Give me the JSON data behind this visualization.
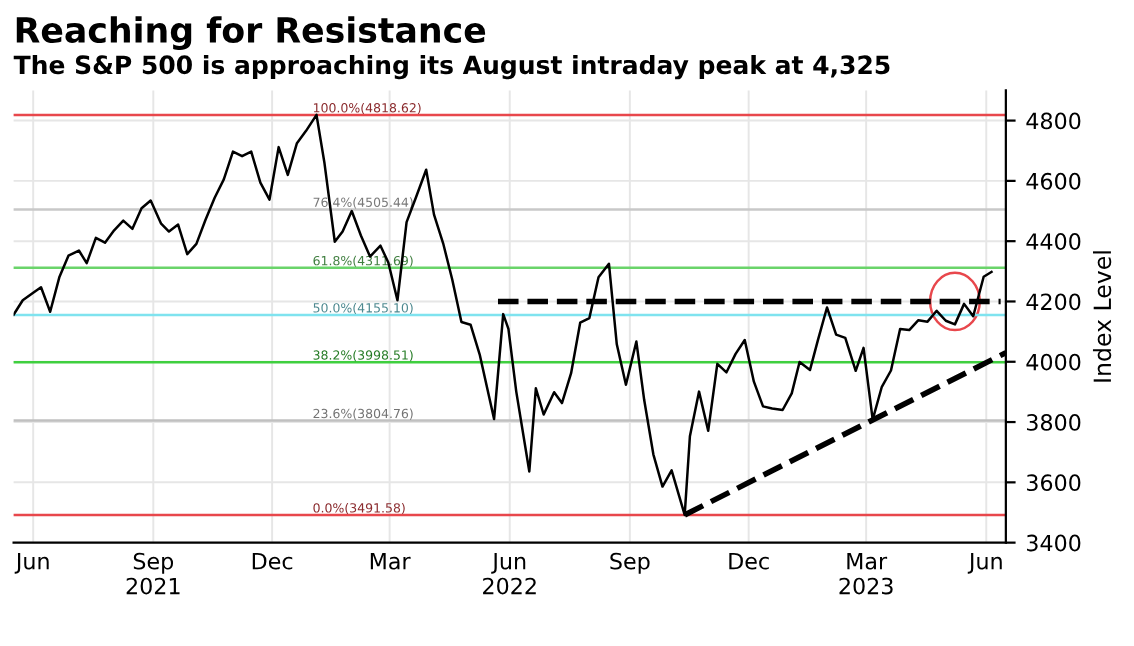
{
  "chart_data": {
    "type": "line",
    "title": "Reaching for Resistance",
    "subtitle": "The S&P 500 is approaching its August intraday peak at 4,325",
    "ylabel": "Index Level",
    "series": [
      {
        "color": "#000000",
        "line_style": "solid",
        "x": [
          "2021-05-17",
          "2021-05-24",
          "2021-06-01",
          "2021-06-07",
          "2021-06-14",
          "2021-06-21",
          "2021-06-28",
          "2021-07-06",
          "2021-07-12",
          "2021-07-19",
          "2021-07-26",
          "2021-08-02",
          "2021-08-09",
          "2021-08-16",
          "2021-08-23",
          "2021-08-30",
          "2021-09-07",
          "2021-09-13",
          "2021-09-20",
          "2021-09-27",
          "2021-10-04",
          "2021-10-11",
          "2021-10-18",
          "2021-10-25",
          "2021-11-01",
          "2021-11-08",
          "2021-11-15",
          "2021-11-22",
          "2021-11-29",
          "2021-12-06",
          "2021-12-13",
          "2021-12-20",
          "2021-12-27",
          "2022-01-04",
          "2022-01-10",
          "2022-01-18",
          "2022-01-24",
          "2022-01-31",
          "2022-02-07",
          "2022-02-14",
          "2022-02-22",
          "2022-02-28",
          "2022-03-07",
          "2022-03-14",
          "2022-03-21",
          "2022-03-29",
          "2022-04-04",
          "2022-04-11",
          "2022-04-18",
          "2022-04-25",
          "2022-05-02",
          "2022-05-09",
          "2022-05-20",
          "2022-05-27",
          "2022-05-31",
          "2022-06-06",
          "2022-06-16",
          "2022-06-21",
          "2022-06-27",
          "2022-07-05",
          "2022-07-11",
          "2022-07-18",
          "2022-07-25",
          "2022-08-01",
          "2022-08-08",
          "2022-08-16",
          "2022-08-22",
          "2022-08-29",
          "2022-09-06",
          "2022-09-12",
          "2022-09-19",
          "2022-09-26",
          "2022-10-03",
          "2022-10-13",
          "2022-10-17",
          "2022-10-24",
          "2022-10-31",
          "2022-11-07",
          "2022-11-14",
          "2022-11-21",
          "2022-11-28",
          "2022-12-05",
          "2022-12-12",
          "2022-12-19",
          "2022-12-27",
          "2023-01-03",
          "2023-01-09",
          "2023-01-17",
          "2023-01-23",
          "2023-01-30",
          "2023-02-06",
          "2023-02-13",
          "2023-02-21",
          "2023-02-27",
          "2023-03-06",
          "2023-03-13",
          "2023-03-20",
          "2023-03-27",
          "2023-04-03",
          "2023-04-10",
          "2023-04-17",
          "2023-04-24",
          "2023-05-01",
          "2023-05-08",
          "2023-05-15",
          "2023-05-22",
          "2023-05-30",
          "2023-06-05"
        ],
        "values": [
          4156,
          4204,
          4229,
          4247,
          4166,
          4280,
          4352,
          4369,
          4327,
          4411,
          4395,
          4436,
          4468,
          4441,
          4509,
          4535,
          4458,
          4432,
          4455,
          4357,
          4391,
          4471,
          4544,
          4605,
          4697,
          4682,
          4697,
          4594,
          4538,
          4712,
          4620,
          4725,
          4766,
          4819,
          4662,
          4398,
          4432,
          4500,
          4419,
          4349,
          4385,
          4329,
          4204,
          4463,
          4543,
          4637,
          4488,
          4393,
          4272,
          4132,
          4123,
          4024,
          3810,
          4158,
          4109,
          3901,
          3636,
          3912,
          3825,
          3899,
          3863,
          3962,
          4130,
          4145,
          4280,
          4325,
          4058,
          3924,
          4067,
          3873,
          3693,
          3586,
          3640,
          3492,
          3753,
          3901,
          3771,
          3993,
          3965,
          4026,
          4072,
          3934,
          3852,
          3845,
          3840,
          3895,
          3999,
          3973,
          4071,
          4180,
          4090,
          4079,
          3970,
          4046,
          3808,
          3917,
          3971,
          4109,
          4105,
          4138,
          4133,
          4169,
          4136,
          4124,
          4192,
          4151,
          4282,
          4298
        ]
      },
      {
        "color": "#000000",
        "line_style": "dashed",
        "x": [
          "2022-05-23",
          "2023-06-12"
        ],
        "values": [
          4200,
          4200
        ]
      },
      {
        "color": "#000000",
        "line_style": "dashed",
        "x": [
          "2022-10-13",
          "2023-06-16"
        ],
        "values": [
          3492,
          4030
        ]
      }
    ],
    "ref_lines": [
      {
        "axis": "y",
        "value": 4818.62,
        "label": "100.0%(4818.62)",
        "color": "#e8474c"
      },
      {
        "axis": "y",
        "value": 4505.44,
        "label": "76.4%(4505.44)",
        "color": "#c8c8c8"
      },
      {
        "axis": "y",
        "value": 4311.69,
        "label": "61.8%(4311.69)",
        "color": "#6ad46a"
      },
      {
        "axis": "y",
        "value": 4155.1,
        "label": "50.0%(4155.10)",
        "color": "#7fe3ef"
      },
      {
        "axis": "y",
        "value": 3998.51,
        "label": "38.2%(3998.51)",
        "color": "#3fcf3f"
      },
      {
        "axis": "y",
        "value": 3804.76,
        "label": "23.6%(3804.76)",
        "color": "#c0c0c0"
      },
      {
        "axis": "y",
        "value": 3491.58,
        "label": "0.0%(3491.58)",
        "color": "#e8474c"
      }
    ],
    "xlim": [
      "2021-05-17",
      "2023-06-16"
    ],
    "xticks": [
      {
        "value": "2021-06-01",
        "label": "Jun"
      },
      {
        "value": "2021-09-01",
        "label": "Sep\n2021"
      },
      {
        "value": "2021-12-01",
        "label": "Dec"
      },
      {
        "value": "2022-03-01",
        "label": "Mar"
      },
      {
        "value": "2022-06-01",
        "label": "Jun\n2022"
      },
      {
        "value": "2022-09-01",
        "label": "Sep"
      },
      {
        "value": "2022-12-01",
        "label": "Dec"
      },
      {
        "value": "2023-03-01",
        "label": "Mar\n2023"
      },
      {
        "value": "2023-06-01",
        "label": "Jun"
      }
    ],
    "ylim": [
      3400,
      4900
    ],
    "yticks": [
      3400,
      3600,
      3800,
      4000,
      4200,
      4400,
      4600,
      4800
    ],
    "grid": true,
    "legend": false
  }
}
